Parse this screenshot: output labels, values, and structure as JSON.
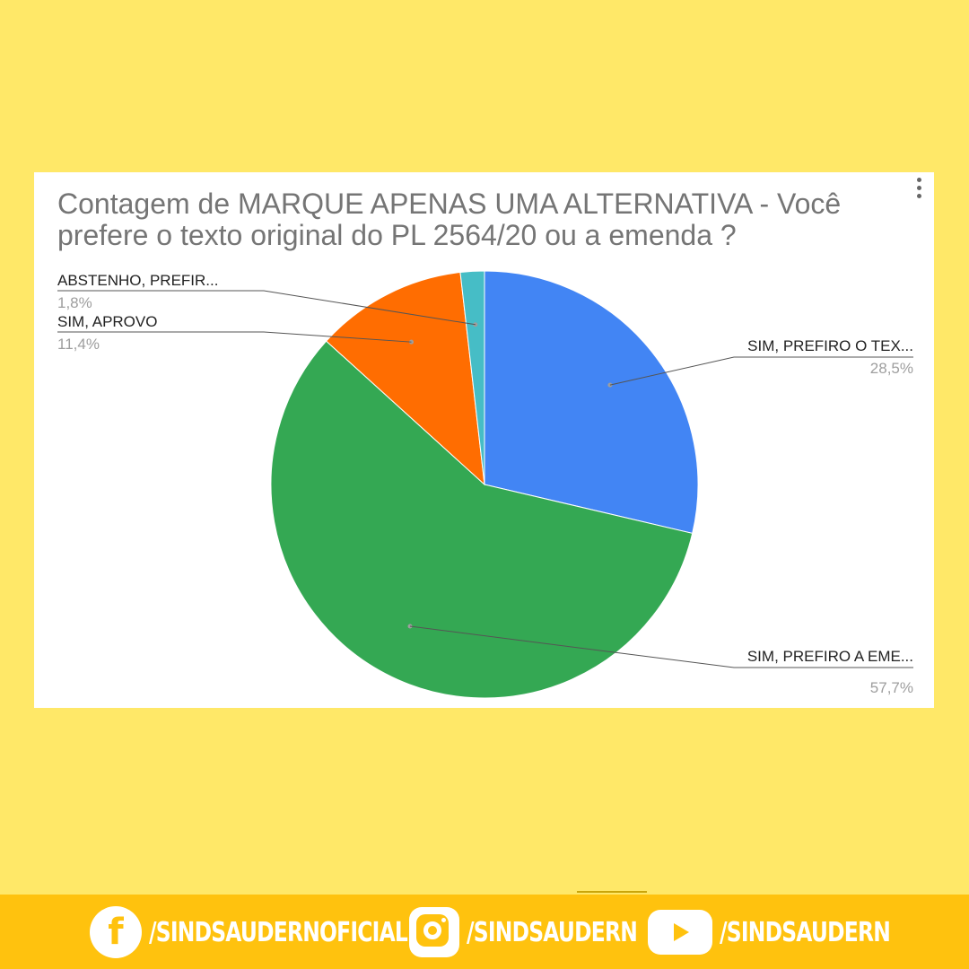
{
  "chart_data": {
    "type": "pie",
    "title": "Contagem de MARQUE APENAS UMA ALTERNATIVA - Você prefere o texto original do PL 2564/20 ou a emenda ?",
    "slices": [
      {
        "label": "SIM, PREFIRO O TEX...",
        "value": 28.5,
        "value_label": "28,5%",
        "color": "#4285F4"
      },
      {
        "label": "SIM, PREFIRO A EME...",
        "value": 57.7,
        "value_label": "57,7%",
        "color": "#34A853"
      },
      {
        "label": "SIM, APROVO",
        "value": 11.4,
        "value_label": "11,4%",
        "color": "#FF6D01"
      },
      {
        "label": "ABSTENHO, PREFIR...",
        "value": 1.8,
        "value_label": "1,8%",
        "color": "#46BDC6"
      }
    ],
    "start_angle": "12 o'clock",
    "direction": "clockwise",
    "legend": "none"
  },
  "footer": {
    "facebook_icon": "facebook-icon",
    "facebook_handle": "/SINDSAUDERNOFICIAL",
    "instagram_icon": "instagram-icon",
    "instagram_handle": "/SINDSAUDERN",
    "youtube_icon": "youtube-icon",
    "youtube_handle": "/SINDSAUDERN",
    "accent_color": "#FFC20E"
  },
  "page_background": "#FFE868"
}
